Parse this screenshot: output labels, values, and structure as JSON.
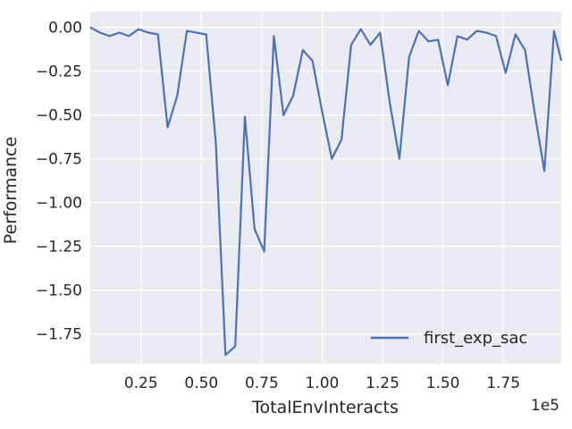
{
  "chart_data": {
    "type": "line",
    "xlabel": "TotalEnvInteracts",
    "ylabel": "Performance",
    "x_offset_label": "1e5",
    "xlim": [
      0.04,
      1.99
    ],
    "ylim": [
      -1.92,
      0.09
    ],
    "x_ticks": [
      0.25,
      0.5,
      0.75,
      1.0,
      1.25,
      1.5,
      1.75
    ],
    "x_tick_labels": [
      "0.25",
      "0.50",
      "0.75",
      "1.00",
      "1.25",
      "1.50",
      "1.75"
    ],
    "y_ticks": [
      0.0,
      -0.25,
      -0.5,
      -0.75,
      -1.0,
      -1.25,
      -1.5,
      -1.75
    ],
    "y_tick_labels": [
      "0.00",
      "−0.25",
      "−0.50",
      "−0.75",
      "−1.00",
      "−1.25",
      "−1.50",
      "−1.75"
    ],
    "grid": true,
    "background_color": "#eaeaf2",
    "legend_position": "lower-right",
    "series": [
      {
        "name": "first_exp_sac",
        "color": "#4c72b0",
        "x": [
          0.04,
          0.08,
          0.12,
          0.16,
          0.2,
          0.24,
          0.28,
          0.32,
          0.36,
          0.4,
          0.44,
          0.48,
          0.52,
          0.56,
          0.6,
          0.64,
          0.68,
          0.72,
          0.76,
          0.8,
          0.84,
          0.88,
          0.92,
          0.96,
          1.0,
          1.04,
          1.08,
          1.12,
          1.16,
          1.2,
          1.24,
          1.28,
          1.32,
          1.36,
          1.4,
          1.44,
          1.48,
          1.52,
          1.56,
          1.6,
          1.64,
          1.68,
          1.72,
          1.76,
          1.8,
          1.84,
          1.88,
          1.92,
          1.96,
          1.99
        ],
        "y": [
          0.0,
          -0.03,
          -0.05,
          -0.03,
          -0.05,
          -0.01,
          -0.03,
          -0.04,
          -0.57,
          -0.39,
          -0.02,
          -0.03,
          -0.04,
          -0.66,
          -1.87,
          -1.82,
          -0.51,
          -1.15,
          -1.28,
          -0.05,
          -0.5,
          -0.39,
          -0.13,
          -0.19,
          -0.48,
          -0.75,
          -0.64,
          -0.1,
          -0.01,
          -0.1,
          -0.03,
          -0.43,
          -0.75,
          -0.17,
          -0.02,
          -0.08,
          -0.07,
          -0.33,
          -0.05,
          -0.07,
          -0.02,
          -0.03,
          -0.05,
          -0.26,
          -0.04,
          -0.13,
          -0.49,
          -0.82,
          -0.02,
          -0.19
        ]
      }
    ]
  }
}
